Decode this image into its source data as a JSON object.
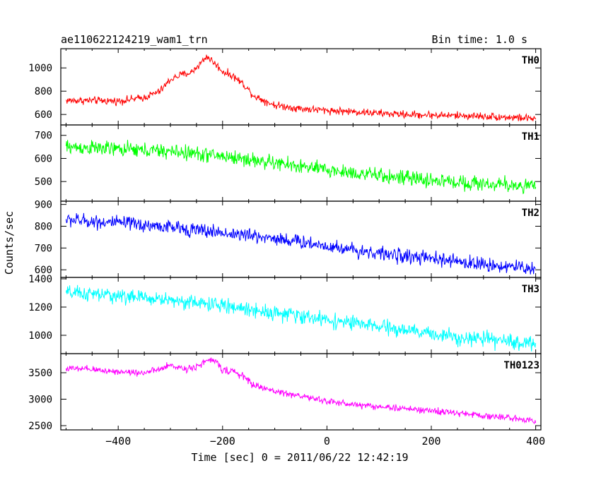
{
  "header": {
    "title": "ae110622124219_wam1_trn",
    "bin_time": "Bin time: 1.0 s"
  },
  "chart_data": {
    "type": "line",
    "title": "ae110622124219_wam1_trn",
    "subtitle": "Bin time: 1.0 s",
    "xlabel": "Time [sec] 0 = 2011/06/22 12:42:19",
    "ylabel": "Counts/sec",
    "xlim": [
      -510,
      410
    ],
    "x_ticks": [
      -400,
      -200,
      0,
      200,
      400
    ],
    "x_tick_labels": [
      "−400",
      "−200",
      "0",
      "200",
      "400"
    ],
    "grid": false,
    "panels": [
      {
        "name": "TH0",
        "color": "#ff0000",
        "ylim": [
          510,
          1165
        ],
        "y_ticks": [
          600,
          800,
          1000
        ],
        "y_tick_labels": [
          "600",
          "800",
          "1000"
        ],
        "noise": 28,
        "x": [
          -500,
          -450,
          -400,
          -350,
          -320,
          -300,
          -280,
          -260,
          -240,
          -230,
          -220,
          -200,
          -180,
          -160,
          -140,
          -100,
          -50,
          0,
          50,
          100,
          150,
          200,
          250,
          300,
          350,
          400
        ],
        "values": [
          720,
          720,
          715,
          745,
          800,
          900,
          940,
          960,
          1050,
          1100,
          1060,
          970,
          930,
          860,
          760,
          680,
          650,
          635,
          625,
          610,
          600,
          595,
          590,
          585,
          575,
          565
        ]
      },
      {
        "name": "TH1",
        "color": "#00ff00",
        "ylim": [
          415,
          745
        ],
        "y_ticks": [
          500,
          600,
          700
        ],
        "y_tick_labels": [
          "500",
          "600",
          "700"
        ],
        "noise": 28,
        "x": [
          -500,
          -400,
          -300,
          -200,
          -100,
          0,
          100,
          200,
          300,
          400
        ],
        "values": [
          650,
          640,
          630,
          610,
          580,
          550,
          525,
          505,
          490,
          480
        ]
      },
      {
        "name": "TH2",
        "color": "#0000ff",
        "ylim": [
          565,
          915
        ],
        "y_ticks": [
          600,
          700,
          800,
          900
        ],
        "y_tick_labels": [
          "600",
          "700",
          "800",
          "900"
        ],
        "noise": 28,
        "x": [
          -500,
          -400,
          -300,
          -200,
          -100,
          0,
          100,
          200,
          300,
          400
        ],
        "values": [
          830,
          815,
          795,
          770,
          745,
          710,
          675,
          650,
          625,
          605
        ]
      },
      {
        "name": "TH3",
        "color": "#00ffff",
        "ylim": [
          870,
          1410
        ],
        "y_ticks": [
          1000,
          1200,
          1400
        ],
        "y_tick_labels": [
          "1000",
          "1200",
          "1400"
        ],
        "noise": 45,
        "x": [
          -500,
          -400,
          -300,
          -200,
          -100,
          0,
          100,
          200,
          300,
          400
        ],
        "values": [
          1300,
          1280,
          1250,
          1210,
          1160,
          1110,
          1060,
          1010,
          970,
          940
        ]
      },
      {
        "name": "TH0123",
        "color": "#ff00ff",
        "ylim": [
          2420,
          3860
        ],
        "y_ticks": [
          2500,
          3000,
          3500
        ],
        "y_tick_labels": [
          "2500",
          "3000",
          "3500"
        ],
        "noise": 55,
        "x": [
          -500,
          -450,
          -400,
          -350,
          -320,
          -300,
          -270,
          -250,
          -230,
          -220,
          -210,
          -200,
          -180,
          -160,
          -140,
          -100,
          -50,
          0,
          50,
          100,
          200,
          300,
          400
        ],
        "values": [
          3580,
          3560,
          3520,
          3500,
          3560,
          3640,
          3570,
          3620,
          3720,
          3740,
          3680,
          3560,
          3520,
          3430,
          3260,
          3150,
          3060,
          2960,
          2900,
          2860,
          2780,
          2690,
          2600
        ]
      }
    ]
  }
}
